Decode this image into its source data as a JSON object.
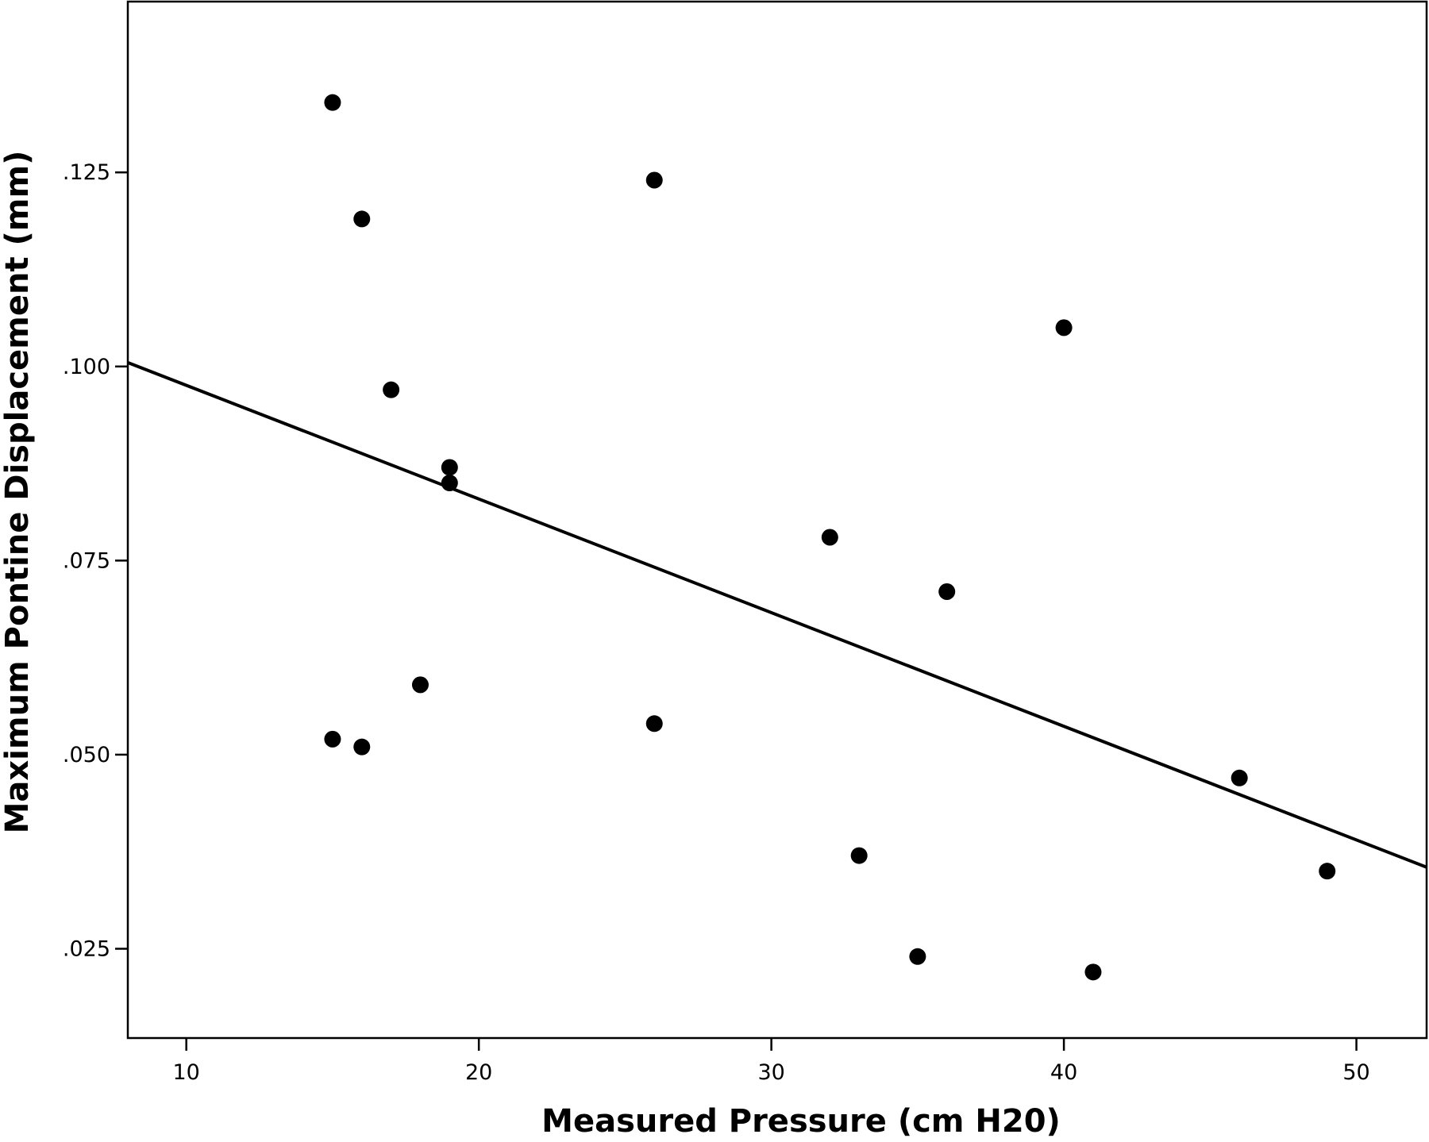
{
  "chart_data": {
    "type": "scatter",
    "xlabel": "Measured Pressure (cm H20)",
    "ylabel": "Maximum Pontine Displacement (mm)",
    "xlim": [
      8,
      52.4
    ],
    "ylim": [
      0.0135,
      0.147
    ],
    "x_ticks": [
      10,
      20,
      30,
      40,
      50
    ],
    "x_tick_labels": [
      "10",
      "20",
      "30",
      "40",
      "50"
    ],
    "y_ticks": [
      0.025,
      0.05,
      0.075,
      0.1,
      0.125
    ],
    "y_tick_labels": [
      ".025",
      ".050",
      ".075",
      ".100",
      ".125"
    ],
    "grid": false,
    "legend": "none",
    "series": [
      {
        "points": [
          {
            "x": 15,
            "y": 0.134
          },
          {
            "x": 16,
            "y": 0.119
          },
          {
            "x": 17,
            "y": 0.097
          },
          {
            "x": 19,
            "y": 0.087
          },
          {
            "x": 19,
            "y": 0.085
          },
          {
            "x": 18,
            "y": 0.059
          },
          {
            "x": 15,
            "y": 0.052
          },
          {
            "x": 16,
            "y": 0.051
          },
          {
            "x": 26,
            "y": 0.124
          },
          {
            "x": 26,
            "y": 0.054
          },
          {
            "x": 32,
            "y": 0.078
          },
          {
            "x": 33,
            "y": 0.037
          },
          {
            "x": 35,
            "y": 0.024
          },
          {
            "x": 36,
            "y": 0.071
          },
          {
            "x": 40,
            "y": 0.105
          },
          {
            "x": 41,
            "y": 0.022
          },
          {
            "x": 46,
            "y": 0.047
          },
          {
            "x": 49,
            "y": 0.035
          }
        ]
      }
    ],
    "fit_line": {
      "x": [
        8,
        52.4
      ],
      "y": [
        0.1005,
        0.0355
      ]
    },
    "colors": {
      "marker": "#000000",
      "line": "#000000",
      "axes": "#000000"
    }
  }
}
